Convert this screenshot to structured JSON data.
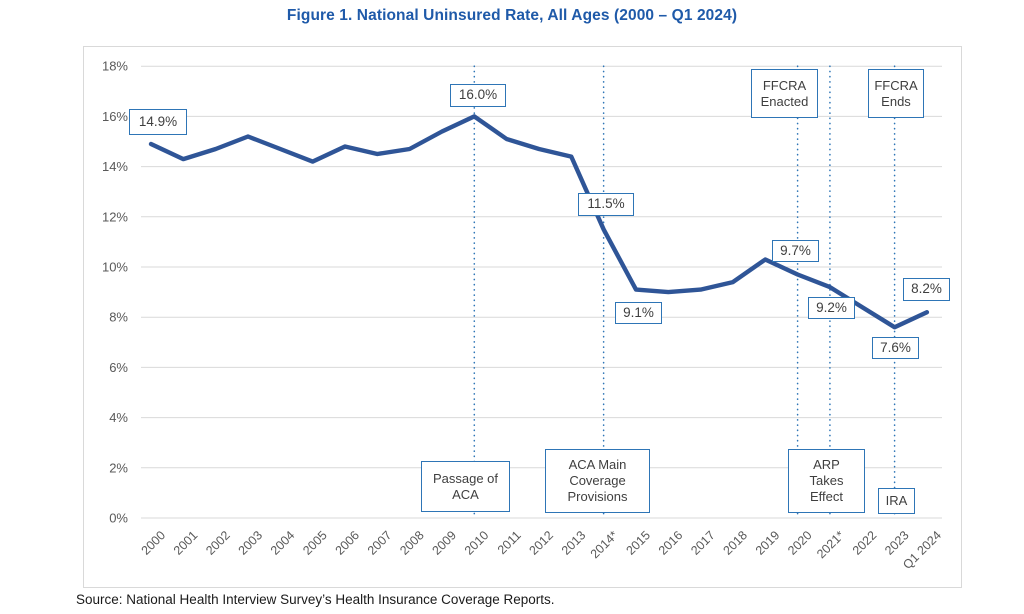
{
  "page": {
    "title": "Figure 1. National Uninsured Rate, All Ages (2000 – Q1 2024)",
    "source": "Source: National Health Interview Survey’s Health Insurance Coverage Reports."
  },
  "colors": {
    "title_blue": "#1F5AA9",
    "line_blue": "#2F5597",
    "accent_blue": "#2E75B6",
    "grid_gray": "#D9D9D9",
    "axis_text_gray": "#595959"
  },
  "chart_data": {
    "type": "line",
    "title": "Figure 1. National Uninsured Rate, All Ages (2000 – Q1 2024)",
    "xlabel": "",
    "ylabel": "",
    "ylim": [
      0,
      18
    ],
    "grid": true,
    "legend": "none",
    "series_name": "National Uninsured Rate",
    "categories": [
      "2000",
      "2001",
      "2002",
      "2003",
      "2004",
      "2005",
      "2006",
      "2007",
      "2008",
      "2009",
      "2010",
      "2011",
      "2012",
      "2013",
      "2014*",
      "2015",
      "2016",
      "2017",
      "2018",
      "2019",
      "2020",
      "2021*",
      "2022",
      "2023",
      "Q1 2024"
    ],
    "values": [
      14.9,
      14.3,
      14.7,
      15.2,
      14.7,
      14.2,
      14.8,
      14.5,
      14.7,
      15.4,
      16.0,
      15.1,
      14.7,
      14.4,
      11.5,
      9.1,
      9.0,
      9.1,
      9.4,
      10.3,
      9.7,
      9.2,
      8.4,
      7.6,
      8.2
    ],
    "y_ticks": [
      "18%",
      "16%",
      "14%",
      "12%",
      "10%",
      "8%",
      "6%",
      "4%",
      "2%",
      "0%"
    ],
    "event_lines": [
      {
        "index": 10,
        "label": "Passage of ACA"
      },
      {
        "index": 14,
        "label": "ACA Main Coverage Provisions"
      },
      {
        "index": 20,
        "label": "FFCRA Enacted"
      },
      {
        "index": 21,
        "label": "ARP Takes Effect"
      },
      {
        "index": 23,
        "label": "FFCRA Ends / IRA"
      }
    ]
  },
  "value_labels": {
    "v2000": "14.9%",
    "v2010": "16.0%",
    "v2014": "11.5%",
    "v2015": "9.1%",
    "v2020": "9.7%",
    "v2021": "9.2%",
    "v2023": "7.6%",
    "v2024": "8.2%"
  },
  "event_boxes": {
    "ffcra_enacted": "FFCRA\nEnacted",
    "ffcra_ends": "FFCRA\nEnds",
    "aca_passage": "Passage of\nACA",
    "aca_main": "ACA Main\nCoverage\nProvisions",
    "arp": "ARP\nTakes\nEffect",
    "ira": "IRA"
  }
}
